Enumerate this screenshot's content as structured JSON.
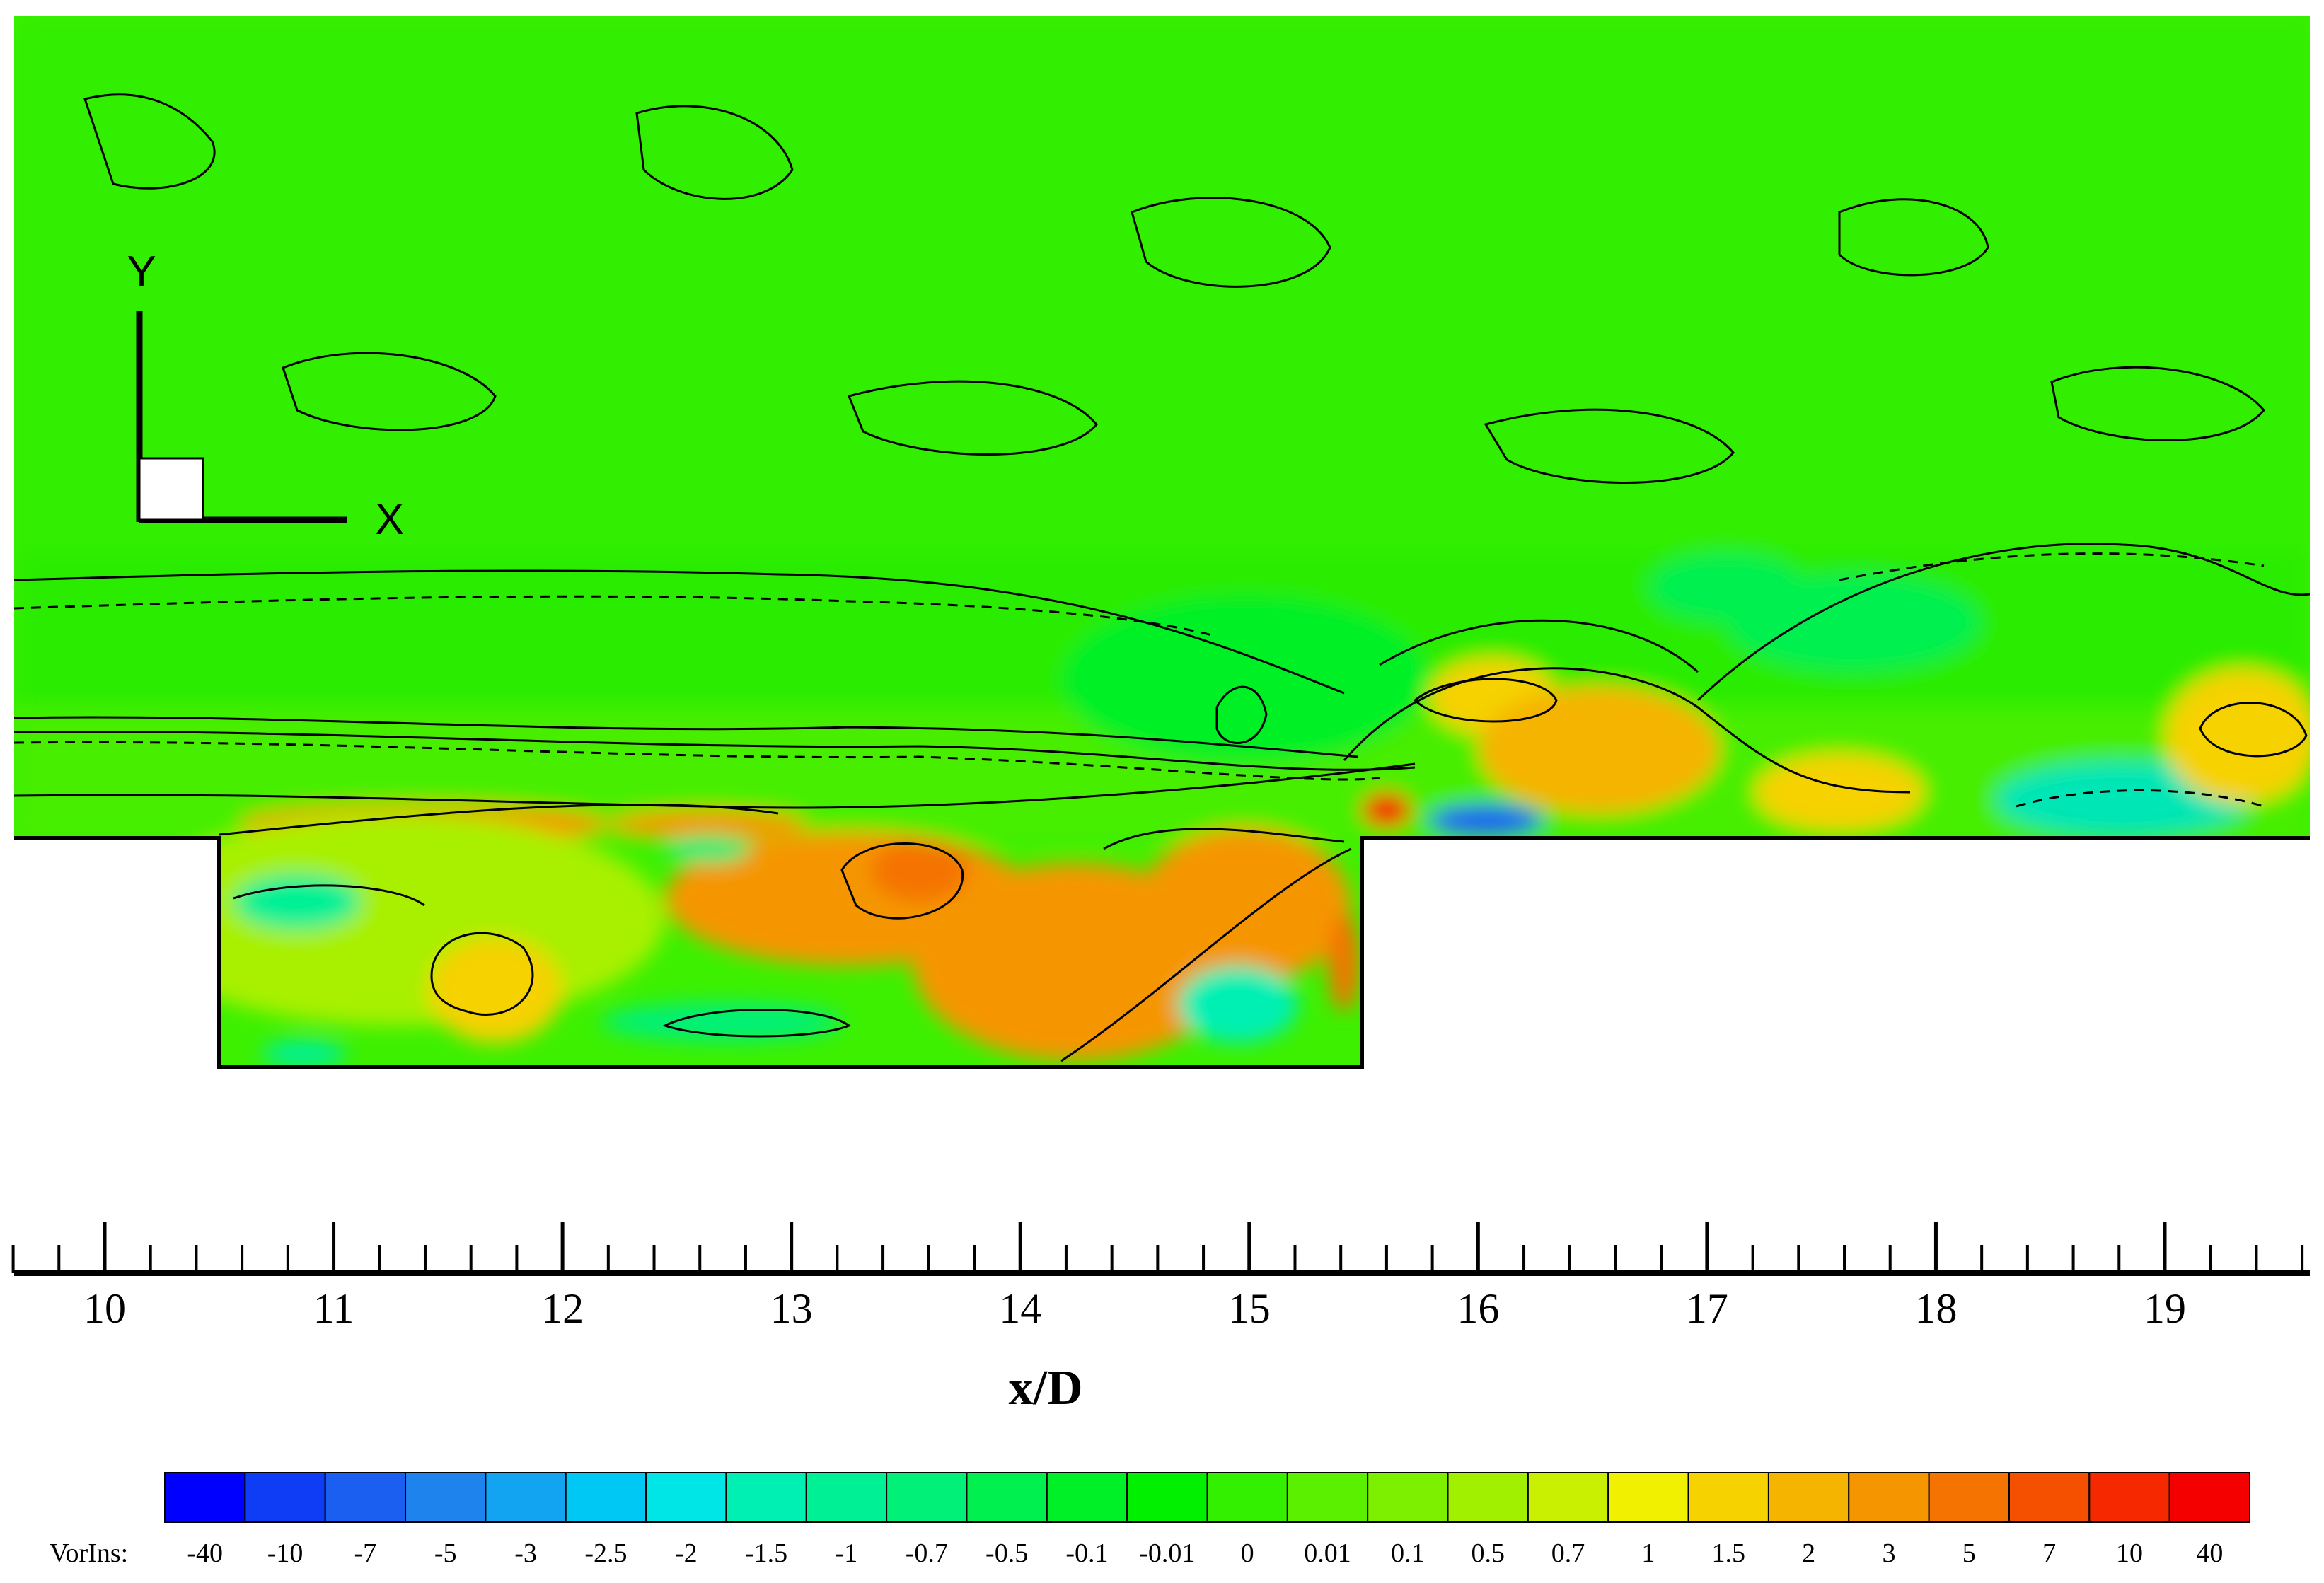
{
  "chart_data": {
    "type": "heatmap",
    "xlabel": "x/D",
    "x_range": [
      9.6,
      19.7
    ],
    "x_ticks": [
      10,
      11,
      12,
      13,
      14,
      15,
      16,
      17,
      18,
      19
    ],
    "minor_ticks_per_major": 4,
    "cavity": {
      "x_start": 10.5,
      "x_end": 15.5
    },
    "triad": {
      "x_label": "X",
      "y_label": "Y"
    },
    "colorbar": {
      "title": "VorIns:",
      "levels": [
        "-40",
        "-10",
        "-7",
        "-5",
        "-3",
        "-2.5",
        "-2",
        "-1.5",
        "-1",
        "-0.7",
        "-0.5",
        "-0.1",
        "-0.01",
        "0",
        "0.01",
        "0.1",
        "0.5",
        "0.7",
        "1",
        "1.5",
        "2",
        "3",
        "5",
        "7",
        "10",
        "40"
      ],
      "colors": [
        "#0000ff",
        "#0f3cf5",
        "#1a5ff0",
        "#1f83ee",
        "#12a4f0",
        "#00c8f5",
        "#00e6e6",
        "#00f0b4",
        "#00f096",
        "#00f078",
        "#00f050",
        "#00f028",
        "#00f000",
        "#33f000",
        "#5af000",
        "#7df000",
        "#a0f000",
        "#c8f000",
        "#f0f000",
        "#f5d200",
        "#f5b400",
        "#f59600",
        "#f57300",
        "#f55000",
        "#f52800",
        "#f50000"
      ]
    }
  }
}
